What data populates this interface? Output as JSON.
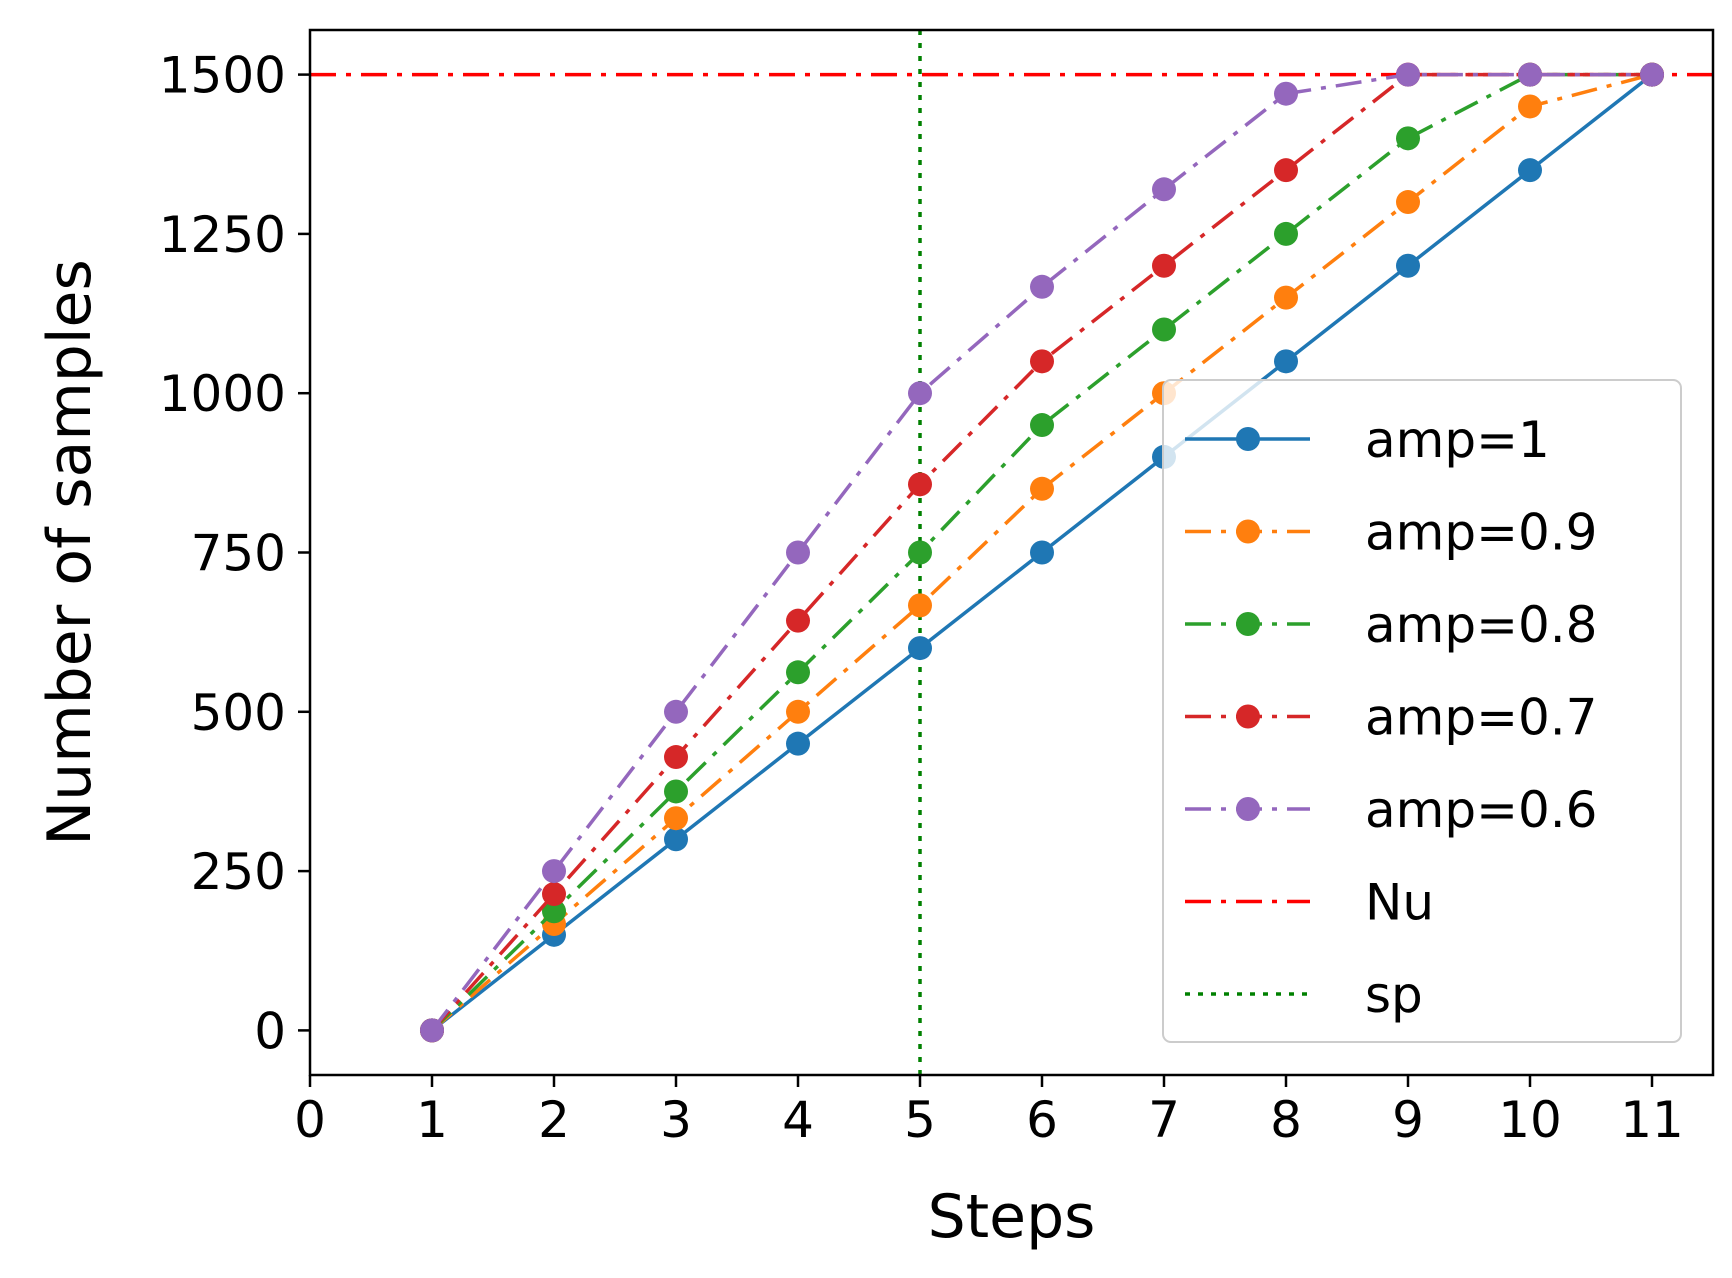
{
  "chart_data": {
    "type": "line",
    "xlabel": "Steps",
    "ylabel": "Number of samples",
    "xlim": [
      0,
      11.5
    ],
    "ylim": [
      -70,
      1570
    ],
    "xticks": [
      "0",
      "1",
      "2",
      "3",
      "4",
      "5",
      "6",
      "7",
      "8",
      "9",
      "10",
      "11"
    ],
    "yticks": [
      "0",
      "250",
      "500",
      "750",
      "1000",
      "1250",
      "1500"
    ],
    "x": [
      1,
      2,
      3,
      4,
      5,
      6,
      7,
      8,
      9,
      10,
      11
    ],
    "legend_position": "center-right",
    "series": [
      {
        "name": "amp=1",
        "color": "#1f77b4",
        "style": "solid",
        "values": [
          0,
          150,
          300,
          450,
          600,
          750,
          900,
          1050,
          1200,
          1350,
          1500
        ]
      },
      {
        "name": "amp=0.9",
        "color": "#ff7f0e",
        "style": "dashdot",
        "values": [
          0,
          167,
          333,
          500,
          667,
          850,
          1000,
          1150,
          1300,
          1450,
          1500
        ]
      },
      {
        "name": "amp=0.8",
        "color": "#2ca02c",
        "style": "dashdot",
        "values": [
          0,
          187,
          375,
          562,
          750,
          950,
          1100,
          1250,
          1400,
          1500,
          1500
        ]
      },
      {
        "name": "amp=0.7",
        "color": "#d62728",
        "style": "dashdot",
        "values": [
          0,
          214,
          429,
          643,
          857,
          1050,
          1200,
          1350,
          1500,
          1500,
          1500
        ]
      },
      {
        "name": "amp=0.6",
        "color": "#9467bd",
        "style": "dashdot",
        "values": [
          0,
          250,
          500,
          750,
          1000,
          1167,
          1320,
          1470,
          1500,
          1500,
          1500
        ]
      }
    ],
    "reference_lines": [
      {
        "name": "Nu",
        "orientation": "horizontal",
        "value": 1500,
        "color": "#ff0000",
        "style": "dashdot"
      },
      {
        "name": "sp",
        "orientation": "vertical",
        "value": 5,
        "color": "#008000",
        "style": "dotted"
      }
    ]
  }
}
